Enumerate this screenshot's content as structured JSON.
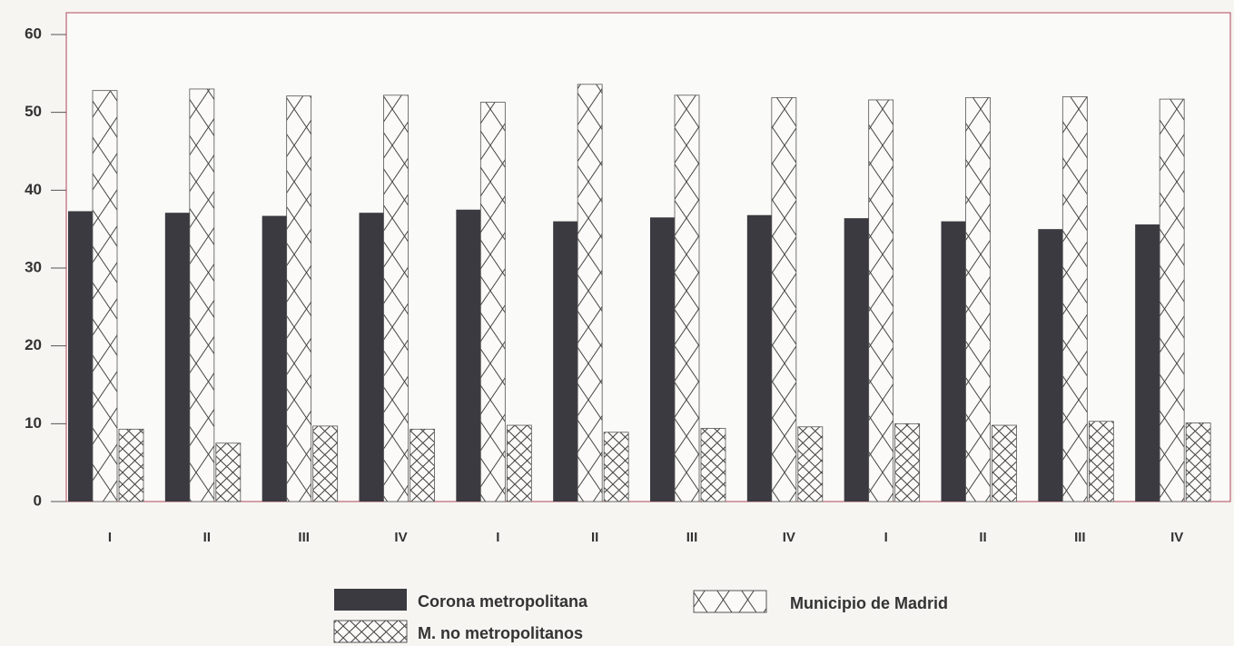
{
  "chart_data": {
    "type": "bar",
    "categories": [
      "I",
      "II",
      "III",
      "IV",
      "I",
      "II",
      "III",
      "IV",
      "I",
      "II",
      "III",
      "IV"
    ],
    "series": [
      {
        "name": "Corona metropolitana",
        "color": "#3a3a40",
        "hatch": "none",
        "values": [
          37.3,
          37.1,
          36.7,
          37.1,
          37.5,
          36.0,
          36.5,
          36.8,
          36.4,
          36.0,
          35.0,
          35.6
        ]
      },
      {
        "name": "Municipio de Madrid",
        "color": "#444444",
        "hatch": "large",
        "values": [
          52.8,
          53.0,
          52.1,
          52.2,
          51.3,
          53.6,
          52.2,
          51.9,
          51.6,
          51.9,
          52.0,
          51.7
        ]
      },
      {
        "name": "M. no metropolitanos",
        "color": "#444444",
        "hatch": "small",
        "values": [
          9.3,
          7.5,
          9.7,
          9.3,
          9.8,
          8.9,
          9.4,
          9.6,
          10.0,
          9.8,
          10.3,
          10.1
        ]
      }
    ],
    "ylim": [
      0,
      62.8
    ],
    "yticks": [
      0,
      10,
      20,
      30,
      40,
      50,
      60
    ]
  }
}
